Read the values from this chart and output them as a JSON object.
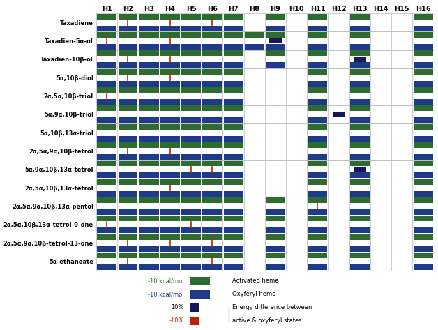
{
  "rows": [
    "Taxadiene",
    "Taxadien-5α-ol",
    "Taxadien-10β-ol",
    "5α,10β-diol",
    "2α,5α,10β-triol",
    "5α,9α,10β-triol",
    "5α,10β,13α-triol",
    "2α,5α,9α,10β-tetrol",
    "5α,9α,10β,13α-tetrol",
    "2α,5α,10β,13α-tetrol",
    "2α,5α,9α,10β,13α-pentol",
    "2α,5α,10β,13α-tetrol-9-one",
    "2α,5α,9α,10β-tetrol-13-one",
    "5α-ethanoate"
  ],
  "cols": [
    "H1",
    "H2",
    "H3",
    "H4",
    "H5",
    "H6",
    "H7",
    "H8",
    "H9",
    "H10",
    "H11",
    "H12",
    "H13",
    "H14",
    "H15",
    "H16"
  ],
  "green_color": "#2e6b30",
  "blue_color": "#1e3b8a",
  "dark_blue_color": "#15175a",
  "red_color": "#bb2200",
  "bg_color": "#ffffff",
  "grid_color": "#bbbbbb",
  "figsize": [
    6.28,
    4.73
  ],
  "dpi": 100,
  "row_green": [
    [
      0,
      1,
      2,
      3,
      4,
      5,
      6,
      8,
      10,
      12,
      15
    ],
    [
      0,
      1,
      2,
      3,
      4,
      5,
      6,
      7,
      8,
      10,
      12,
      15
    ],
    [
      0,
      1,
      2,
      3,
      4,
      5,
      6,
      8,
      10,
      12,
      15
    ],
    [
      0,
      1,
      2,
      3,
      4,
      5,
      6,
      10,
      12,
      15
    ],
    [
      0,
      1,
      2,
      3,
      4,
      5,
      6,
      10,
      12,
      15
    ],
    [
      0,
      1,
      2,
      3,
      4,
      5,
      6,
      10,
      12,
      15
    ],
    [
      0,
      1,
      2,
      3,
      4,
      5,
      6,
      10,
      12,
      15
    ],
    [
      0,
      1,
      2,
      3,
      4,
      5,
      6,
      10,
      12,
      15
    ],
    [
      0,
      1,
      2,
      3,
      4,
      5,
      6,
      10,
      12,
      15
    ],
    [
      0,
      1,
      2,
      3,
      4,
      5,
      6,
      10,
      12,
      15
    ],
    [
      0,
      1,
      2,
      3,
      4,
      5,
      6,
      8,
      10,
      12,
      15
    ],
    [
      0,
      1,
      2,
      3,
      4,
      5,
      6,
      8,
      10,
      12,
      15
    ],
    [
      0,
      1,
      2,
      3,
      4,
      5,
      6,
      8,
      10,
      12,
      15
    ],
    [
      0,
      1,
      2,
      3,
      4,
      5,
      6,
      8,
      10,
      12,
      15
    ]
  ],
  "row_blue": [
    [
      0,
      1,
      2,
      3,
      4,
      5,
      6,
      8,
      10,
      12,
      15
    ],
    [
      0,
      1,
      2,
      3,
      4,
      5,
      6,
      7,
      8,
      10,
      12,
      15
    ],
    [
      0,
      1,
      2,
      3,
      4,
      5,
      6,
      8,
      10,
      12,
      15
    ],
    [
      0,
      1,
      2,
      3,
      4,
      5,
      6,
      10,
      12,
      15
    ],
    [
      0,
      1,
      2,
      3,
      4,
      5,
      6,
      10,
      12,
      15
    ],
    [
      0,
      1,
      2,
      3,
      4,
      5,
      6,
      10,
      12,
      15
    ],
    [
      0,
      1,
      2,
      3,
      4,
      5,
      6,
      10,
      12,
      15
    ],
    [
      0,
      1,
      2,
      3,
      4,
      5,
      6,
      10,
      12,
      15
    ],
    [
      0,
      1,
      2,
      3,
      4,
      5,
      6,
      10,
      12,
      15
    ],
    [
      0,
      1,
      2,
      3,
      4,
      5,
      6,
      10,
      12,
      15
    ],
    [
      0,
      1,
      2,
      3,
      4,
      5,
      6,
      8,
      10,
      12,
      15
    ],
    [
      0,
      1,
      2,
      3,
      4,
      5,
      6,
      8,
      10,
      12,
      15
    ],
    [
      0,
      1,
      2,
      3,
      4,
      5,
      6,
      8,
      10,
      12,
      15
    ],
    [
      0,
      1,
      2,
      3,
      4,
      5,
      6,
      8,
      10,
      12,
      15
    ]
  ],
  "row_red": [
    [
      1,
      3,
      5
    ],
    [
      0,
      3
    ],
    [
      1,
      3
    ],
    [
      1,
      3
    ],
    [
      0
    ],
    [],
    [],
    [
      1,
      3
    ],
    [
      4,
      5
    ],
    [
      3
    ],
    [
      10
    ],
    [
      0,
      4
    ],
    [
      1,
      3,
      5
    ],
    [
      1,
      5
    ]
  ],
  "row_dark_marker": [
    [],
    [
      8
    ],
    [
      12
    ],
    [],
    [],
    [
      11
    ],
    [],
    [],
    [
      12
    ],
    [],
    [],
    [],
    [],
    []
  ]
}
